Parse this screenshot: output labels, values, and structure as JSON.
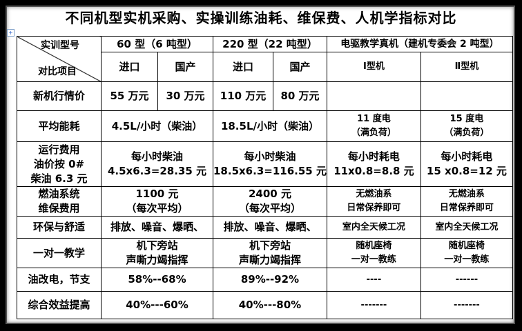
{
  "title": "不同机型实机采购、实操训练油耗、维保费、人机学指标对比",
  "header": {
    "corner_top": "实训型号",
    "corner_bottom": "对比项目",
    "groups": [
      "60 型（6 吨型）",
      "220 型（22 吨型）",
      "电驱教学真机（建机专委会 2 吨型）"
    ],
    "subcols": [
      "进口",
      "国产",
      "进口",
      "国产",
      "Ⅰ型机",
      "Ⅱ型机"
    ]
  },
  "rows": {
    "price": {
      "label": "新机行情价",
      "values": [
        "55 万元",
        "30 万元",
        "110 万元",
        "80 万元",
        "",
        ""
      ]
    },
    "energy": {
      "label": "平均能耗",
      "c60": "4.5L/小时（柴油）",
      "c220": "18.5L/小时（柴油）",
      "e1": [
        "11 度电",
        "（满负荷）"
      ],
      "e2": [
        "15 度电",
        "（满负荷）"
      ]
    },
    "running": {
      "label": [
        "运行费用",
        "油价按 0#",
        "柴油 6.3 元"
      ],
      "c60": [
        "每小时柴油",
        "4.5x6.3=28.35 元"
      ],
      "c220": [
        "每小时柴油",
        "18.5x6.3=116.55 元"
      ],
      "e1": [
        "每小时耗电",
        "11x0.8=8.8 元"
      ],
      "e2": [
        "每小时耗电",
        "15 x0.8=12 元"
      ]
    },
    "maintenance": {
      "label": [
        "燃油系统",
        "维保费用"
      ],
      "c60": [
        "1100 元",
        "（每次平均）"
      ],
      "c220": [
        "2400 元",
        "（每次平均）"
      ],
      "e1": [
        "无燃油系",
        "日常保养即可"
      ],
      "e2": [
        "无燃油系",
        "日常保养即可"
      ]
    },
    "environment": {
      "label": "环保与舒适",
      "c60": "排放、噪音、爆晒、",
      "c220": "排放、噪音、爆晒、",
      "e1": "室内全天候工况",
      "e2": "室内全天候工况"
    },
    "teaching": {
      "label": "一对一教学",
      "c60": [
        "机下旁站",
        "声嘶力竭指挥"
      ],
      "c220": [
        "机下旁站",
        "声嘶力竭指挥"
      ],
      "e1": [
        "随机座椅",
        "一对一教练"
      ],
      "e2": [
        "随机座椅",
        "一对一教练"
      ]
    },
    "saving": {
      "label": "油改电，节支",
      "c60": "58%--68%",
      "c220": "89%--92%",
      "e1": "----",
      "e2": "------"
    },
    "benefit": {
      "label": "综合效益提高",
      "c60": "40%---60%",
      "c220": "40%---80%",
      "e1": "-------",
      "e2": "-------"
    }
  }
}
